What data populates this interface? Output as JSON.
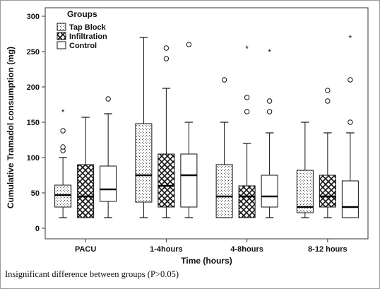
{
  "chart_data": {
    "type": "boxplot",
    "xlabel": "Time (hours)",
    "ylabel": "Cumulative Tramadol consumption (mg)",
    "ylim": [
      0,
      300
    ],
    "yticks": [
      0,
      50,
      100,
      150,
      200,
      250,
      300
    ],
    "categories": [
      "PACU",
      "1-4hours",
      "4-8hours",
      "8-12 hours"
    ],
    "legend": {
      "title": "Groups",
      "position": "top-left",
      "entries": [
        {
          "label": "Tap Block",
          "pattern": "dots"
        },
        {
          "label": "Infiltration",
          "pattern": "crosshatch"
        },
        {
          "label": "Control",
          "pattern": "none"
        }
      ]
    },
    "series": [
      {
        "name": "Tap Block",
        "pattern": "dots",
        "boxes": [
          {
            "min": 15,
            "q1": 30,
            "median": 47,
            "q3": 61,
            "max": 100,
            "outliers": [
              110,
              115,
              138
            ],
            "extremes": [
              165
            ]
          },
          {
            "min": 15,
            "q1": 37,
            "median": 75,
            "q3": 148,
            "max": 270,
            "outliers": [],
            "extremes": []
          },
          {
            "min": 15,
            "q1": 15,
            "median": 45,
            "q3": 90,
            "max": 150,
            "outliers": [
              210
            ],
            "extremes": []
          },
          {
            "min": 15,
            "q1": 22,
            "median": 30,
            "q3": 82,
            "max": 150,
            "outliers": [],
            "extremes": []
          }
        ]
      },
      {
        "name": "Infiltration",
        "pattern": "crosshatch",
        "boxes": [
          {
            "min": 15,
            "q1": 15,
            "median": 45,
            "q3": 90,
            "max": 157,
            "outliers": [],
            "extremes": []
          },
          {
            "min": 15,
            "q1": 30,
            "median": 60,
            "q3": 105,
            "max": 198,
            "outliers": [
              240,
              255
            ],
            "extremes": []
          },
          {
            "min": 15,
            "q1": 15,
            "median": 45,
            "q3": 60,
            "max": 120,
            "outliers": [
              165,
              185
            ],
            "extremes": [
              255
            ]
          },
          {
            "min": 15,
            "q1": 30,
            "median": 45,
            "q3": 75,
            "max": 135,
            "outliers": [
              180,
              195
            ],
            "extremes": []
          }
        ]
      },
      {
        "name": "Control",
        "pattern": "none",
        "boxes": [
          {
            "min": 15,
            "q1": 38,
            "median": 55,
            "q3": 88,
            "max": 162,
            "outliers": [
              183
            ],
            "extremes": []
          },
          {
            "min": 15,
            "q1": 30,
            "median": 75,
            "q3": 105,
            "max": 150,
            "outliers": [
              260
            ],
            "extremes": []
          },
          {
            "min": 15,
            "q1": 30,
            "median": 45,
            "q3": 75,
            "max": 135,
            "outliers": [
              165,
              180
            ],
            "extremes": [
              250
            ]
          },
          {
            "min": 15,
            "q1": 15,
            "median": 30,
            "q3": 67,
            "max": 135,
            "outliers": [
              150,
              210
            ],
            "extremes": [
              270
            ]
          }
        ]
      }
    ],
    "grid": false
  },
  "caption": "Insignificant difference between groups (P>0.05)"
}
